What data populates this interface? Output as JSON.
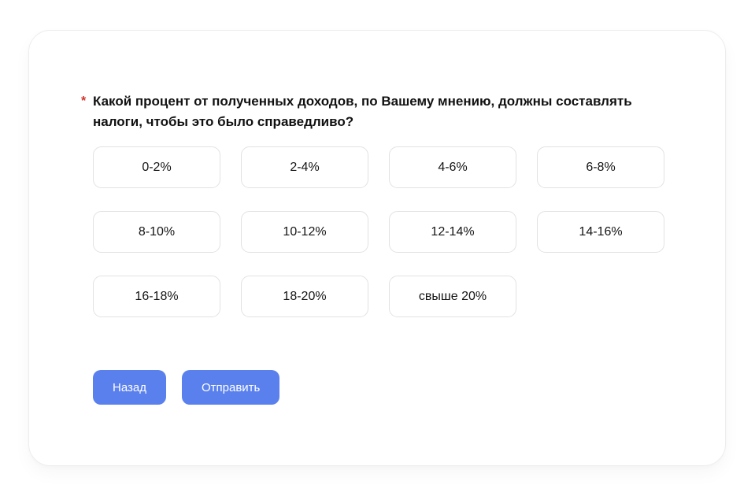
{
  "question": {
    "required_marker": "*",
    "text": "Какой процент от полученных доходов, по Вашему мнению, должны составлять налоги, чтобы это было справедливо?"
  },
  "options": [
    "0-2%",
    "2-4%",
    "4-6%",
    "6-8%",
    "8-10%",
    "10-12%",
    "12-14%",
    "14-16%",
    "16-18%",
    "18-20%",
    "свыше 20%"
  ],
  "actions": {
    "back_label": "Назад",
    "submit_label": "Отправить"
  },
  "colors": {
    "accent_blue": "#5a80ee",
    "required_red": "#d0342c"
  }
}
